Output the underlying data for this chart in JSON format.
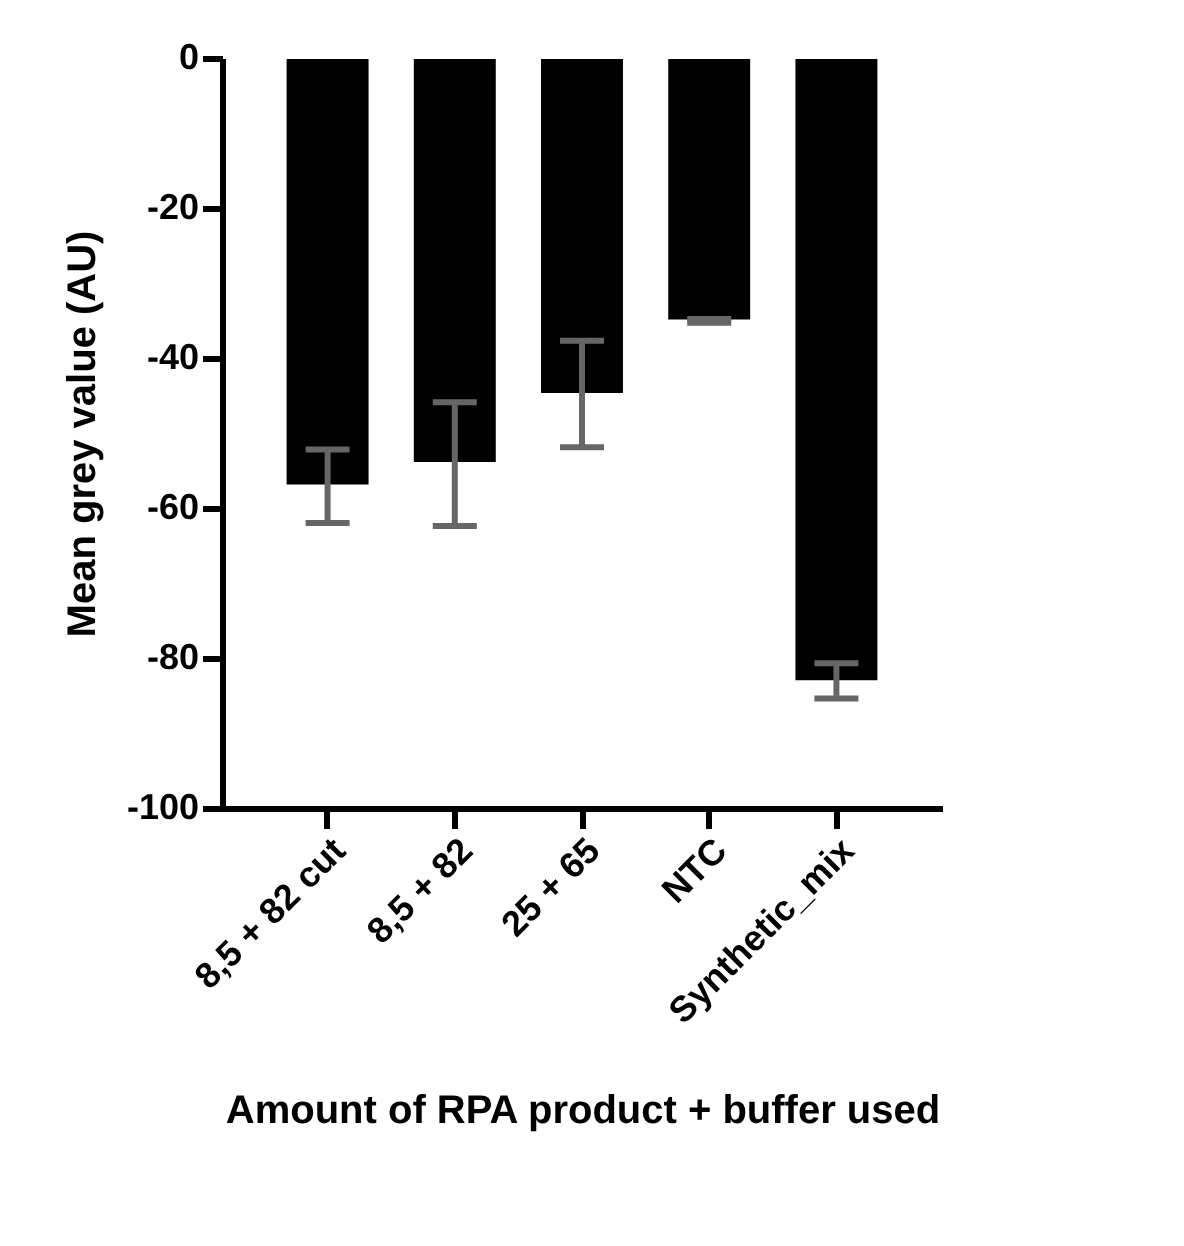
{
  "chart_data": {
    "type": "bar",
    "xlabel": "Amount of RPA product + buffer used",
    "ylabel": "Mean grey value (AU)",
    "categories": [
      "8,5 + 82 cut",
      "8,5 + 82",
      "25 + 65",
      "NTC",
      "Synthetic_mix"
    ],
    "values": [
      -57,
      -54,
      -44.8,
      -35,
      -83.1
    ],
    "errors": [
      [
        -62,
        -52.2
      ],
      [
        -62.4,
        -45.9
      ],
      [
        -51.9,
        -37.7
      ],
      [
        -35.3,
        -34.8
      ],
      [
        -85.4,
        -80.7
      ]
    ],
    "color": "#000000",
    "ylim": [
      -100,
      0
    ],
    "yticks": [
      -100,
      -80,
      -60,
      -40,
      -20,
      0
    ],
    "grid": false
  }
}
